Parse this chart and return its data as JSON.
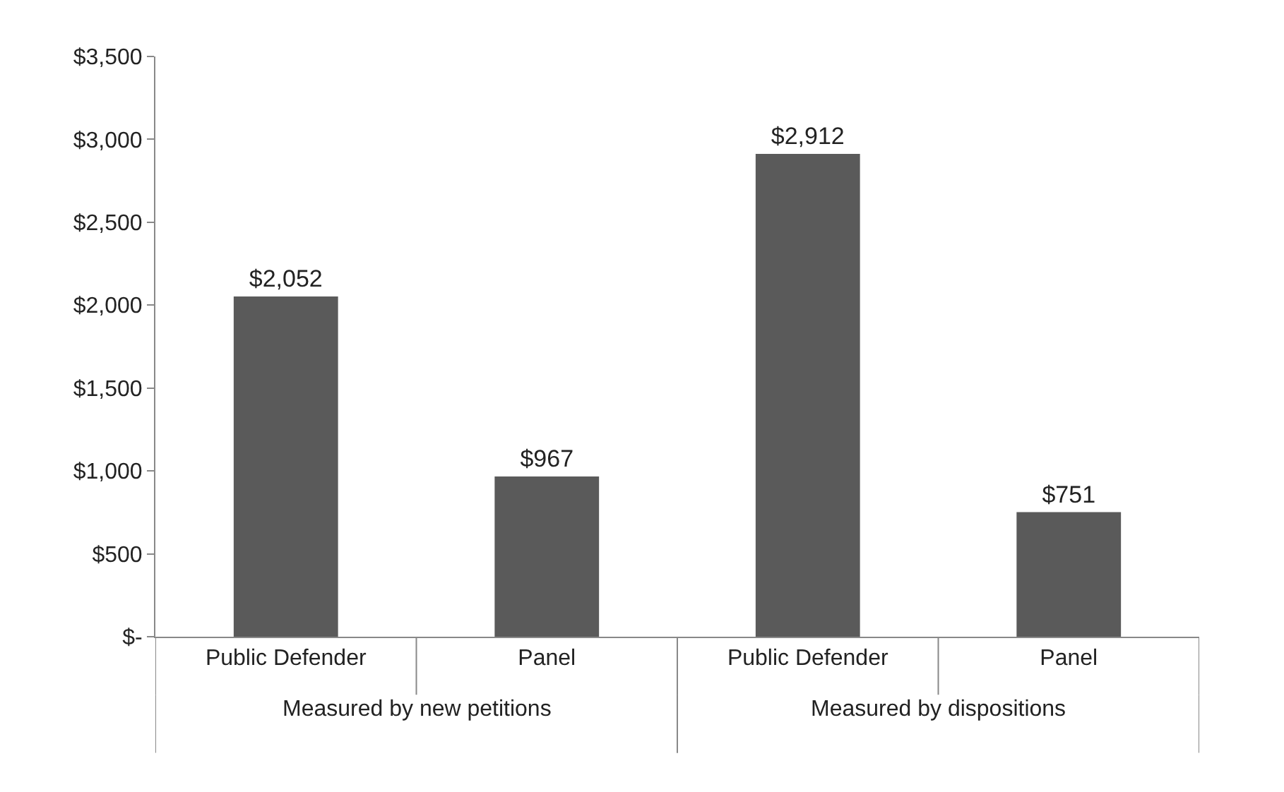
{
  "chart_data": {
    "type": "bar",
    "categories": [
      "Public Defender",
      "Panel",
      "Public Defender",
      "Panel"
    ],
    "values": [
      2052,
      967,
      2912,
      751
    ],
    "color": "#5a5a5a",
    "value_labels": [
      "$2,052",
      "$967",
      "$2,912",
      "$751"
    ],
    "annotations": [
      "Measured by new petitions",
      "Measured by dispositions"
    ],
    "ylim": [
      0,
      3500
    ],
    "yticks": [
      {
        "value": 0,
        "label": "$-"
      },
      {
        "value": 500,
        "label": "$500"
      },
      {
        "value": 1000,
        "label": "$1,000"
      },
      {
        "value": 1500,
        "label": "$1,500"
      },
      {
        "value": 2000,
        "label": "$2,000"
      },
      {
        "value": 2500,
        "label": "$2,500"
      },
      {
        "value": 3000,
        "label": "$3,000"
      },
      {
        "value": 3500,
        "label": "$3,500"
      }
    ],
    "legend": false
  }
}
